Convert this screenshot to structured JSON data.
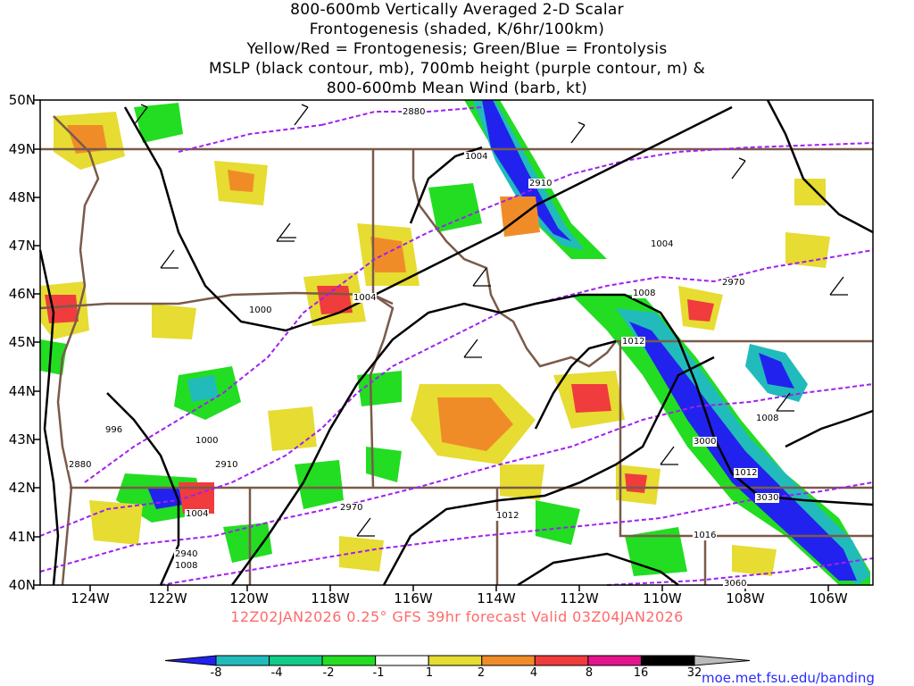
{
  "title_lines": [
    "800-600mb Vertically Averaged 2-D Scalar",
    "Frontogenesis (shaded, K/6hr/100km)",
    "Yellow/Red = Frontogenesis;  Green/Blue = Frontolysis",
    "MSLP (black contour, mb), 700mb height (purple contour, m) &",
    "800-600mb Mean Wind (barb, kt)"
  ],
  "lat_labels": [
    "50N",
    "49N",
    "48N",
    "47N",
    "46N",
    "45N",
    "44N",
    "43N",
    "42N",
    "41N",
    "40N"
  ],
  "lon_labels": [
    "124W",
    "122W",
    "120W",
    "118W",
    "116W",
    "114W",
    "112W",
    "110W",
    "108W",
    "106W"
  ],
  "valid_text": "12Z02JAN2026 0.25° GFS 39hr forecast Valid 03Z04JAN2026",
  "colorbar": {
    "labels": [
      "-8",
      "-4",
      "-2",
      "-1",
      "1",
      "2",
      "4",
      "8",
      "16",
      "32"
    ],
    "colors": [
      "#2222ee",
      "#22bbbb",
      "#11cc88",
      "#22dd22",
      "#ffffff",
      "#e6dc32",
      "#f08c28",
      "#f03c3c",
      "#e6148c",
      "#000000",
      "#bbbbbb"
    ]
  },
  "contour_labels": {
    "mslp": [
      "1004",
      "1004",
      "1004",
      "1000",
      "1008",
      "1012",
      "1008",
      "1012",
      "1000",
      "996",
      "1004",
      "1012",
      "1016",
      "1008"
    ],
    "height": [
      "2880",
      "2910",
      "2970",
      "2910",
      "2880",
      "2970",
      "3000",
      "3030",
      "2940",
      "3060"
    ]
  },
  "credit": "moe.met.fsu.edu/banding",
  "colors": {
    "mslp": "#000000",
    "height": "#a020f0",
    "border": "#7a5a4a",
    "valid": "#ff6a6a",
    "credit": "#2a2aff"
  }
}
